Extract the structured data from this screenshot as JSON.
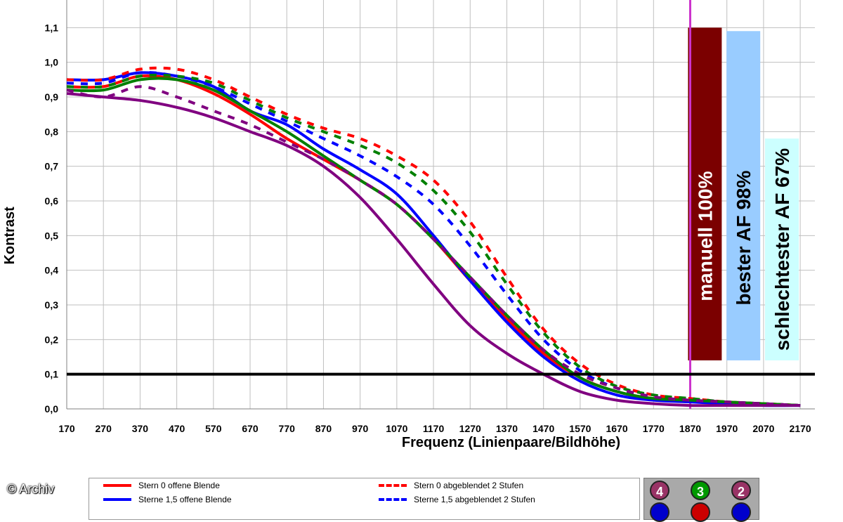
{
  "chart_data": {
    "type": "line",
    "title": "",
    "xlabel": "Frequenz (Linienpaare/Bildhöhe)",
    "ylabel": "Kontrast",
    "xlim": [
      170,
      2210
    ],
    "ylim": [
      0,
      1.2
    ],
    "x_ticks": [
      170,
      270,
      370,
      470,
      570,
      670,
      770,
      870,
      970,
      1070,
      1170,
      1270,
      1370,
      1470,
      1570,
      1670,
      1770,
      1870,
      1970,
      2070,
      2170
    ],
    "y_ticks": [
      "0,0",
      "0,1",
      "0,2",
      "0,3",
      "0,4",
      "0,5",
      "0,6",
      "0,7",
      "0,8",
      "0,9",
      "1,0",
      "1,1"
    ],
    "grid": true,
    "threshold": {
      "y": 0.1,
      "color": "#000000"
    },
    "marker": {
      "x": 1870,
      "color": "#cc33cc"
    },
    "bars": [
      {
        "label": "manuell 100%",
        "value": 1.1,
        "color": "#7b0000",
        "text_color": "#ffffff",
        "x_center": 1910
      },
      {
        "label": "bester AF 98%",
        "value": 1.09,
        "color": "#99ccff",
        "text_color": "#000000",
        "x_center": 2015
      },
      {
        "label": "schlechtester AF 67%",
        "value": 0.78,
        "color": "#ccffff",
        "text_color": "#000000",
        "x_center": 2120
      }
    ],
    "x": [
      170,
      270,
      370,
      470,
      570,
      670,
      770,
      870,
      970,
      1070,
      1170,
      1270,
      1370,
      1470,
      1570,
      1670,
      1770,
      1870,
      1970,
      2070,
      2170
    ],
    "series": [
      {
        "name": "Stern 0 offene Blende",
        "color": "#ff0000",
        "dash": false,
        "values": [
          0.93,
          0.93,
          0.96,
          0.95,
          0.91,
          0.85,
          0.78,
          0.72,
          0.66,
          0.59,
          0.49,
          0.37,
          0.26,
          0.16,
          0.09,
          0.05,
          0.03,
          0.025,
          0.02,
          0.015,
          0.01
        ]
      },
      {
        "name": "Sterne 1,5 offene Blende",
        "color": "#0000ff",
        "dash": false,
        "values": [
          0.95,
          0.95,
          0.97,
          0.96,
          0.93,
          0.86,
          0.82,
          0.75,
          0.69,
          0.62,
          0.5,
          0.37,
          0.25,
          0.15,
          0.08,
          0.04,
          0.025,
          0.02,
          0.015,
          0.01,
          0.01
        ]
      },
      {
        "name": "Stern 0 abgeblendet 2 Stufen",
        "color": "#ff0000",
        "dash": true,
        "values": [
          0.95,
          0.95,
          0.98,
          0.98,
          0.95,
          0.9,
          0.85,
          0.81,
          0.78,
          0.73,
          0.66,
          0.54,
          0.38,
          0.23,
          0.13,
          0.07,
          0.04,
          0.03,
          0.02,
          0.015,
          0.01
        ]
      },
      {
        "name": "Sterne 1,5 abgeblendet 2 Stufen",
        "color": "#0000ff",
        "dash": true,
        "values": [
          0.94,
          0.94,
          0.97,
          0.96,
          0.93,
          0.88,
          0.83,
          0.78,
          0.73,
          0.67,
          0.59,
          0.47,
          0.33,
          0.2,
          0.11,
          0.06,
          0.035,
          0.025,
          0.02,
          0.015,
          0.01
        ]
      },
      {
        "name": "",
        "color": "#008000",
        "dash": false,
        "values": [
          0.92,
          0.92,
          0.95,
          0.95,
          0.92,
          0.86,
          0.8,
          0.73,
          0.66,
          0.59,
          0.49,
          0.38,
          0.27,
          0.17,
          0.09,
          0.05,
          0.03,
          0.025,
          0.02,
          0.015,
          0.01
        ]
      },
      {
        "name": "",
        "color": "#008000",
        "dash": true,
        "values": [
          0.93,
          0.93,
          0.96,
          0.96,
          0.94,
          0.89,
          0.84,
          0.8,
          0.76,
          0.71,
          0.63,
          0.51,
          0.36,
          0.22,
          0.12,
          0.065,
          0.04,
          0.03,
          0.02,
          0.015,
          0.01
        ]
      },
      {
        "name": "",
        "color": "#800080",
        "dash": false,
        "values": [
          0.91,
          0.9,
          0.89,
          0.87,
          0.84,
          0.8,
          0.76,
          0.7,
          0.61,
          0.49,
          0.36,
          0.24,
          0.16,
          0.1,
          0.05,
          0.025,
          0.015,
          0.01,
          0.01,
          0.01,
          0.01
        ]
      },
      {
        "name": "",
        "color": "#800080",
        "dash": true,
        "values": [
          0.92,
          0.9,
          0.93,
          0.9,
          0.86,
          0.82,
          0.77,
          0.72,
          0.66,
          0.59,
          0.49,
          0.38,
          0.27,
          0.17,
          0.1,
          0.06,
          0.035,
          0.025,
          0.02,
          0.015,
          0.01
        ]
      }
    ]
  },
  "legend": {
    "items": [
      {
        "label": "Stern 0 offene Blende",
        "color": "#ff0000",
        "dash": false
      },
      {
        "label": "Sterne 1,5 offene Blende",
        "color": "#0000ff",
        "dash": false
      },
      {
        "label": "Stern 0 abgeblendet 2 Stufen",
        "color": "#ff0000",
        "dash": true
      },
      {
        "label": "Sterne 1,5 abgeblendet 2 Stufen",
        "color": "#0000ff",
        "dash": true
      }
    ]
  },
  "badges": [
    {
      "label": "4",
      "color": "#993366"
    },
    {
      "label": "3",
      "color": "#009900"
    },
    {
      "label": "2",
      "color": "#993366"
    }
  ],
  "credit": "© Archiv"
}
